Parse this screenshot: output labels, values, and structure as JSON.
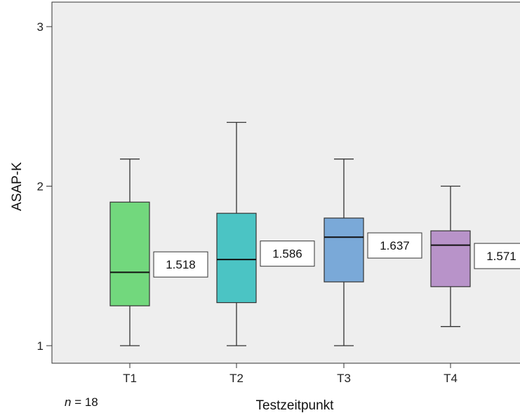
{
  "chart_data": {
    "type": "boxplot",
    "xlabel": "Testzeitpunkt",
    "ylabel": "ASAP-K",
    "ylim": [
      0.9,
      3.15
    ],
    "yticks": [
      1,
      2,
      3
    ],
    "categories": [
      "T1",
      "T2",
      "T3",
      "T4"
    ],
    "boxes": [
      {
        "category": "T1",
        "min": 1.0,
        "q1": 1.25,
        "median": 1.46,
        "q3": 1.9,
        "max": 2.17,
        "value_label": "1.518",
        "color": "#72d87d"
      },
      {
        "category": "T2",
        "min": 1.0,
        "q1": 1.27,
        "median": 1.54,
        "q3": 1.83,
        "max": 2.4,
        "value_label": "1.586",
        "color": "#4bc4c4"
      },
      {
        "category": "T3",
        "min": 1.0,
        "q1": 1.4,
        "median": 1.68,
        "q3": 1.8,
        "max": 2.17,
        "value_label": "1.637",
        "color": "#7aa9d8"
      },
      {
        "category": "T4",
        "min": 1.12,
        "q1": 1.37,
        "median": 1.63,
        "q3": 1.72,
        "max": 2.0,
        "value_label": "1.571",
        "color": "#b893c9"
      }
    ],
    "legend": null,
    "grid": false
  },
  "note": {
    "n_symbol": "n",
    "n_text": " = 18"
  }
}
